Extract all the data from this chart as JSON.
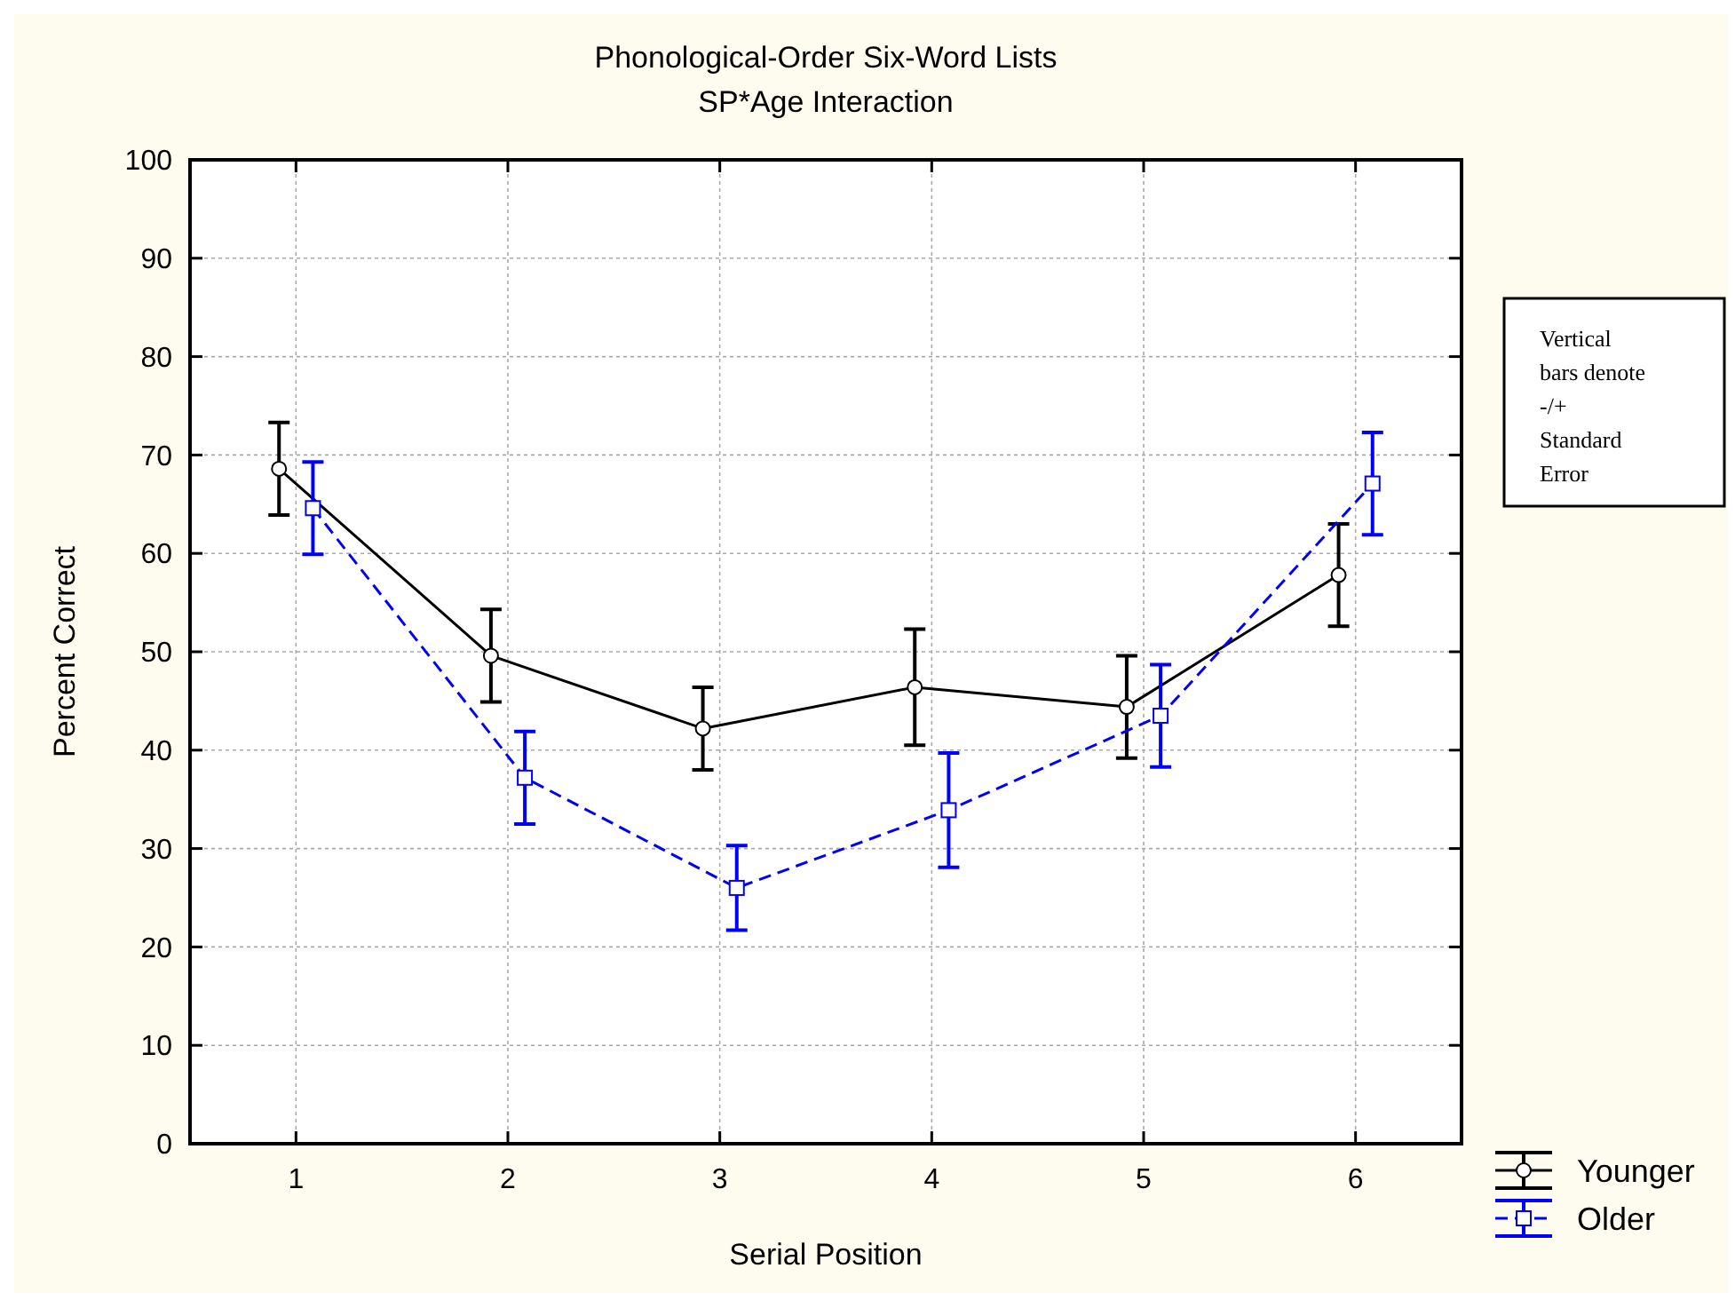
{
  "chart_data": {
    "type": "line",
    "title": "Phonological-Order Six-Word Lists",
    "subtitle": "SP*Age Interaction",
    "xlabel": "Serial Position",
    "ylabel": "Percent Correct",
    "xlim": [
      0.5,
      6.5
    ],
    "xticks": [
      1,
      2,
      3,
      4,
      5,
      6
    ],
    "ylim": [
      0,
      100
    ],
    "yticks": [
      0,
      10,
      20,
      30,
      40,
      50,
      60,
      70,
      80,
      90,
      100
    ],
    "grid": true,
    "legend": "bottom right",
    "annotations": [
      "Vertical bars denote -/+ Standard Error"
    ],
    "series": [
      {
        "name": "Younger",
        "color": "#000000",
        "marker": "circle",
        "line_style": "solid",
        "x": [
          0.92,
          1.92,
          2.92,
          3.92,
          4.92,
          5.92
        ],
        "values": [
          68.6,
          49.6,
          42.2,
          46.4,
          44.4,
          57.8
        ],
        "errors": [
          4.7,
          4.7,
          4.2,
          5.9,
          5.2,
          5.2
        ]
      },
      {
        "name": "Older",
        "color": "#0000ff",
        "marker": "square",
        "line_style": "dashed",
        "x": [
          1.08,
          2.08,
          3.08,
          4.08,
          5.08,
          6.08
        ],
        "values": [
          64.6,
          37.2,
          26.0,
          33.9,
          43.5,
          67.1
        ],
        "errors": [
          4.7,
          4.7,
          4.3,
          5.8,
          5.2,
          5.2
        ]
      }
    ]
  }
}
